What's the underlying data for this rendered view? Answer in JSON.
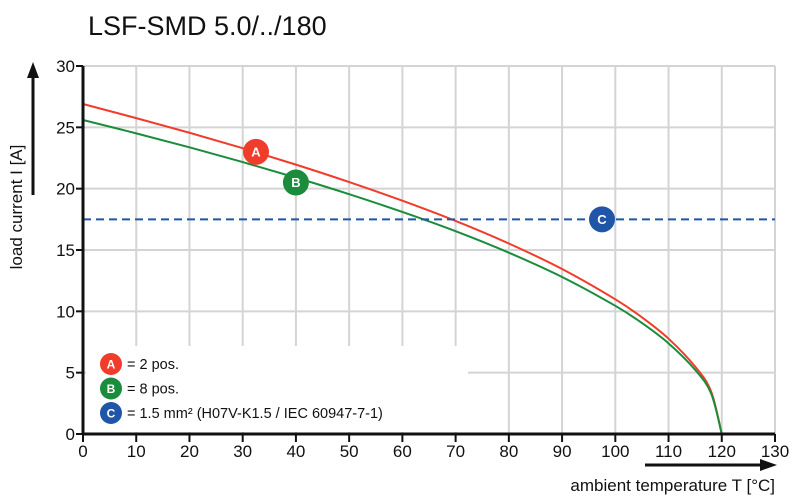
{
  "chart_data": {
    "type": "line",
    "title": "LSF-SMD 5.0/../180",
    "xlabel": "ambient temperature T [°C]",
    "ylabel": "load current I [A]",
    "xlim": [
      0,
      130
    ],
    "ylim": [
      0,
      30
    ],
    "xticks": [
      0,
      10,
      20,
      30,
      40,
      50,
      60,
      70,
      80,
      90,
      100,
      110,
      120,
      130
    ],
    "yticks": [
      0,
      5,
      10,
      15,
      20,
      25,
      30
    ],
    "grid": true,
    "series": [
      {
        "marker": "A",
        "color": "#f03c2a",
        "x": [
          0,
          10,
          20,
          30,
          40,
          50,
          60,
          70,
          80,
          90,
          100,
          105,
          110,
          115,
          118,
          120
        ],
        "y": [
          26.9,
          25.75,
          24.56,
          23.3,
          21.96,
          20.54,
          19.02,
          17.37,
          15.53,
          13.45,
          10.98,
          9.51,
          7.77,
          5.49,
          3.47,
          0
        ]
      },
      {
        "marker": "B",
        "color": "#1a8c3c",
        "x": [
          0,
          10,
          20,
          30,
          40,
          50,
          60,
          70,
          80,
          90,
          100,
          105,
          110,
          115,
          118,
          120
        ],
        "y": [
          25.6,
          24.51,
          23.37,
          22.17,
          20.9,
          19.55,
          18.1,
          16.53,
          14.78,
          12.8,
          10.45,
          9.05,
          7.39,
          5.23,
          3.3,
          0
        ]
      },
      {
        "marker": "C",
        "color": "#1f56a8",
        "dashed": true,
        "x": [
          0,
          130
        ],
        "y": [
          17.5,
          17.5
        ]
      }
    ],
    "markers": [
      {
        "label": "A",
        "x": 32.5,
        "y": 23.0,
        "color": "#f03c2a"
      },
      {
        "label": "B",
        "x": 40,
        "y": 20.5,
        "color": "#1a8c3c"
      },
      {
        "label": "C",
        "x": 97.5,
        "y": 17.5,
        "color": "#1f56a8"
      }
    ],
    "legend": {
      "placement": "bottom-left",
      "entries": [
        {
          "badge": "A",
          "text": "= 2 pos.",
          "color": "#f03c2a"
        },
        {
          "badge": "B",
          "text": "= 8 pos.",
          "color": "#1a8c3c"
        },
        {
          "badge": "C",
          "text": "= 1.5 mm² (H07V-K1.5 / IEC 60947-7-1)",
          "color": "#1f56a8"
        }
      ]
    }
  }
}
